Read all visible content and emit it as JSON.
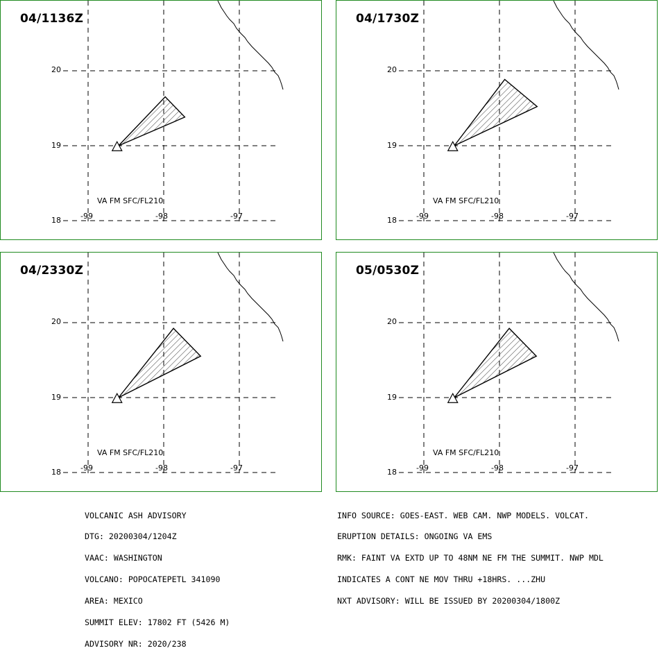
{
  "panels": [
    {
      "time": "04/1136Z",
      "va_label": "VA FM SFC/FL210",
      "ash_polygon_latlon": [
        [
          19.0,
          -98.6
        ],
        [
          19.65,
          -97.98
        ],
        [
          19.38,
          -97.72
        ]
      ]
    },
    {
      "time": "04/1730Z",
      "va_label": "VA FM SFC/FL210",
      "ash_polygon_latlon": [
        [
          19.0,
          -98.6
        ],
        [
          19.88,
          -97.93
        ],
        [
          19.52,
          -97.5
        ]
      ]
    },
    {
      "time": "04/2330Z",
      "va_label": "VA FM SFC/FL210",
      "ash_polygon_latlon": [
        [
          19.0,
          -98.6
        ],
        [
          19.92,
          -97.87
        ],
        [
          19.55,
          -97.51
        ]
      ]
    },
    {
      "time": "05/0530Z",
      "va_label": "VA FM SFC/FL210",
      "ash_polygon_latlon": [
        [
          19.0,
          -98.6
        ],
        [
          19.92,
          -97.87
        ],
        [
          19.55,
          -97.51
        ]
      ]
    }
  ],
  "axes": {
    "lat_labels": [
      "20",
      "19",
      "18"
    ],
    "lon_labels": [
      "-99",
      "-98",
      "-97"
    ]
  },
  "advisory_left": [
    "VOLCANIC ASH ADVISORY",
    "DTG: 20200304/1204Z",
    "VAAC: WASHINGTON",
    "VOLCANO: POPOCATEPETL 341090",
    "AREA: MEXICO",
    "SUMMIT ELEV: 17802 FT (5426 M)",
    "ADVISORY NR: 2020/238"
  ],
  "advisory_right": [
    "INFO SOURCE: GOES-EAST. WEB CAM. NWP MODELS. VOLCAT.",
    "ERUPTION DETAILS: ONGOING VA EMS",
    "RMK: FAINT VA EXTD UP TO 48NM NE FM THE SUMMIT. NWP MDL",
    "INDICATES A CONT NE MOV THRU +18HRS. ...ZHU",
    "NXT ADVISORY: WILL BE ISSUED BY 20200304/1800Z"
  ],
  "colors": {
    "panel_border": "#1f8a1f",
    "lines": "#000000",
    "background": "#ffffff"
  }
}
